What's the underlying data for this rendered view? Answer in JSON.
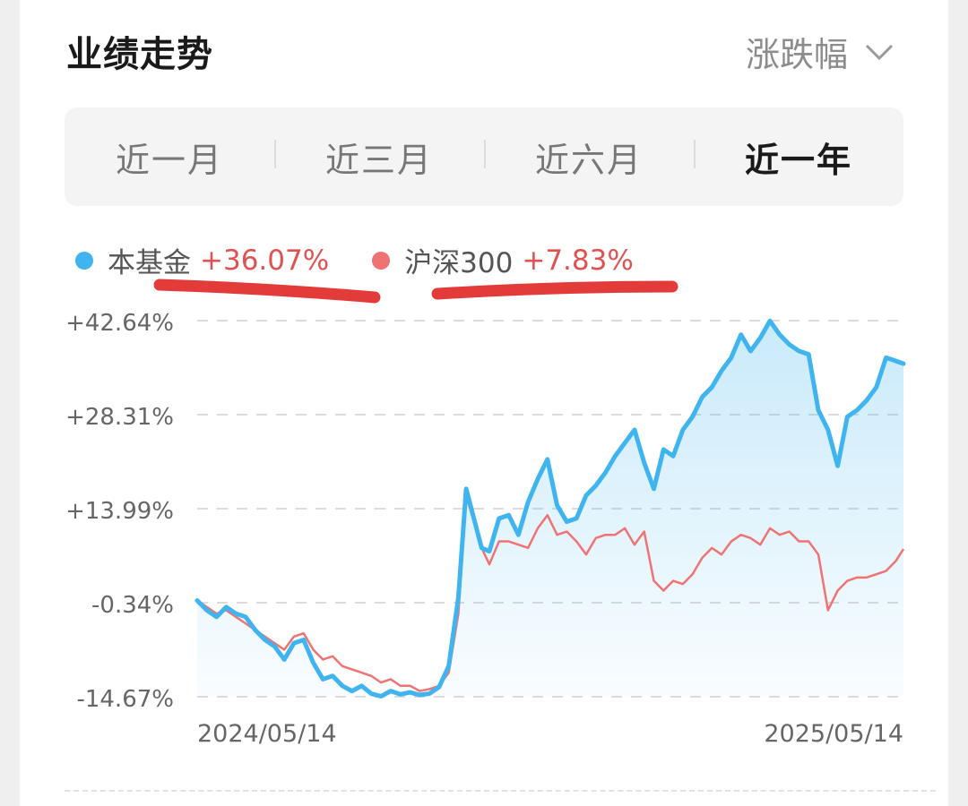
{
  "header": {
    "title": "业绩走势",
    "metric_selector": "涨跌幅"
  },
  "tabs": [
    {
      "label": "近一月",
      "active": false
    },
    {
      "label": "近三月",
      "active": false
    },
    {
      "label": "近六月",
      "active": false
    },
    {
      "label": "近一年",
      "active": true
    }
  ],
  "legend": [
    {
      "name": "本基金",
      "value": "+36.07%",
      "color": "#3fb4ef"
    },
    {
      "name": "沪深300",
      "value": "+7.83%",
      "color": "#ef7373"
    }
  ],
  "annotation_color": "#e33a3a",
  "chart_data": {
    "type": "line",
    "y_ticks": [
      "+42.64%",
      "+28.31%",
      "+13.99%",
      "-0.34%",
      "-14.67%"
    ],
    "y_tick_values": [
      42.64,
      28.31,
      13.99,
      -0.34,
      -14.67
    ],
    "ylim": [
      -14.67,
      42.64
    ],
    "x_tick_labels": [
      "2024/05/14",
      "2025/05/14"
    ],
    "xlim": [
      "2024/05/14",
      "2025/05/14"
    ],
    "grid": "horizontal dashed",
    "series": [
      {
        "name": "本基金",
        "color": "#3fb4ef",
        "area_fill": true,
        "points": [
          [
            "2024/05/14",
            0.0
          ],
          [
            "2024/05/19",
            -1.5
          ],
          [
            "2024/05/24",
            -2.5
          ],
          [
            "2024/05/29",
            -1.0
          ],
          [
            "2024/06/03",
            -2.0
          ],
          [
            "2024/06/08",
            -2.5
          ],
          [
            "2024/06/13",
            -4.5
          ],
          [
            "2024/06/18",
            -6.0
          ],
          [
            "2024/06/23",
            -7.0
          ],
          [
            "2024/06/28",
            -9.0
          ],
          [
            "2024/07/03",
            -6.5
          ],
          [
            "2024/07/08",
            -6.0
          ],
          [
            "2024/07/13",
            -9.5
          ],
          [
            "2024/07/18",
            -12.0
          ],
          [
            "2024/07/23",
            -11.5
          ],
          [
            "2024/07/28",
            -13.0
          ],
          [
            "2024/08/02",
            -13.8
          ],
          [
            "2024/08/07",
            -13.0
          ],
          [
            "2024/08/12",
            -14.2
          ],
          [
            "2024/08/17",
            -14.6
          ],
          [
            "2024/08/22",
            -13.8
          ],
          [
            "2024/08/27",
            -14.3
          ],
          [
            "2024/09/01",
            -14.0
          ],
          [
            "2024/09/06",
            -14.4
          ],
          [
            "2024/09/11",
            -14.2
          ],
          [
            "2024/09/16",
            -13.2
          ],
          [
            "2024/09/21",
            -10.0
          ],
          [
            "2024/09/26",
            0.5
          ],
          [
            "2024/09/30",
            17.0
          ],
          [
            "2024/10/08",
            8.0
          ],
          [
            "2024/10/12",
            7.5
          ],
          [
            "2024/10/17",
            12.5
          ],
          [
            "2024/10/22",
            13.0
          ],
          [
            "2024/10/27",
            10.0
          ],
          [
            "2024/11/01",
            15.0
          ],
          [
            "2024/11/06",
            18.5
          ],
          [
            "2024/11/11",
            21.5
          ],
          [
            "2024/11/16",
            14.5
          ],
          [
            "2024/11/21",
            12.0
          ],
          [
            "2024/11/26",
            12.5
          ],
          [
            "2024/12/01",
            16.0
          ],
          [
            "2024/12/06",
            17.5
          ],
          [
            "2024/12/11",
            19.5
          ],
          [
            "2024/12/16",
            22.0
          ],
          [
            "2024/12/21",
            24.0
          ],
          [
            "2024/12/26",
            26.0
          ],
          [
            "2024/12/31",
            21.0
          ],
          [
            "2025/01/05",
            17.0
          ],
          [
            "2025/01/10",
            23.0
          ],
          [
            "2025/01/15",
            22.0
          ],
          [
            "2025/01/20",
            26.0
          ],
          [
            "2025/01/25",
            28.0
          ],
          [
            "2025/01/30",
            31.0
          ],
          [
            "2025/02/04",
            32.5
          ],
          [
            "2025/02/09",
            35.0
          ],
          [
            "2025/02/14",
            37.0
          ],
          [
            "2025/02/19",
            40.5
          ],
          [
            "2025/02/24",
            38.0
          ],
          [
            "2025/03/01",
            40.0
          ],
          [
            "2025/03/06",
            42.6
          ],
          [
            "2025/03/11",
            40.5
          ],
          [
            "2025/03/16",
            39.0
          ],
          [
            "2025/03/21",
            38.0
          ],
          [
            "2025/03/26",
            37.5
          ],
          [
            "2025/03/31",
            29.0
          ],
          [
            "2025/04/05",
            26.0
          ],
          [
            "2025/04/10",
            20.5
          ],
          [
            "2025/04/15",
            28.0
          ],
          [
            "2025/04/20",
            29.0
          ],
          [
            "2025/04/25",
            30.5
          ],
          [
            "2025/04/30",
            32.5
          ],
          [
            "2025/05/05",
            37.0
          ],
          [
            "2025/05/10",
            36.5
          ],
          [
            "2025/05/14",
            36.07
          ]
        ]
      },
      {
        "name": "沪深300",
        "color": "#ef7373",
        "area_fill": false,
        "points": [
          [
            "2024/05/14",
            0.0
          ],
          [
            "2024/05/19",
            -1.0
          ],
          [
            "2024/05/24",
            -2.0
          ],
          [
            "2024/05/29",
            -1.5
          ],
          [
            "2024/06/03",
            -2.5
          ],
          [
            "2024/06/08",
            -3.5
          ],
          [
            "2024/06/13",
            -4.5
          ],
          [
            "2024/06/18",
            -5.5
          ],
          [
            "2024/06/23",
            -6.5
          ],
          [
            "2024/06/28",
            -7.5
          ],
          [
            "2024/07/03",
            -5.5
          ],
          [
            "2024/07/08",
            -5.0
          ],
          [
            "2024/07/13",
            -7.5
          ],
          [
            "2024/07/18",
            -9.0
          ],
          [
            "2024/07/23",
            -8.5
          ],
          [
            "2024/07/28",
            -10.0
          ],
          [
            "2024/08/02",
            -10.5
          ],
          [
            "2024/08/07",
            -11.0
          ],
          [
            "2024/08/12",
            -11.5
          ],
          [
            "2024/08/17",
            -12.5
          ],
          [
            "2024/08/22",
            -12.0
          ],
          [
            "2024/08/27",
            -13.0
          ],
          [
            "2024/09/01",
            -13.0
          ],
          [
            "2024/09/06",
            -13.8
          ],
          [
            "2024/09/11",
            -13.5
          ],
          [
            "2024/09/16",
            -13.0
          ],
          [
            "2024/09/21",
            -11.0
          ],
          [
            "2024/09/26",
            -2.0
          ],
          [
            "2024/09/30",
            16.0
          ],
          [
            "2024/10/08",
            8.0
          ],
          [
            "2024/10/12",
            5.5
          ],
          [
            "2024/10/17",
            9.0
          ],
          [
            "2024/10/22",
            9.0
          ],
          [
            "2024/10/27",
            8.5
          ],
          [
            "2024/11/01",
            8.0
          ],
          [
            "2024/11/06",
            11.0
          ],
          [
            "2024/11/11",
            13.0
          ],
          [
            "2024/11/16",
            10.0
          ],
          [
            "2024/11/21",
            10.5
          ],
          [
            "2024/11/26",
            9.0
          ],
          [
            "2024/12/01",
            7.0
          ],
          [
            "2024/12/06",
            9.5
          ],
          [
            "2024/12/11",
            10.0
          ],
          [
            "2024/12/16",
            10.0
          ],
          [
            "2024/12/21",
            11.0
          ],
          [
            "2024/12/26",
            8.5
          ],
          [
            "2024/12/31",
            10.5
          ],
          [
            "2025/01/05",
            3.0
          ],
          [
            "2025/01/10",
            1.5
          ],
          [
            "2025/01/15",
            3.0
          ],
          [
            "2025/01/20",
            2.5
          ],
          [
            "2025/01/25",
            4.0
          ],
          [
            "2025/01/30",
            6.5
          ],
          [
            "2025/02/04",
            8.0
          ],
          [
            "2025/02/09",
            7.0
          ],
          [
            "2025/02/14",
            9.0
          ],
          [
            "2025/02/19",
            10.0
          ],
          [
            "2025/02/24",
            9.5
          ],
          [
            "2025/03/01",
            8.5
          ],
          [
            "2025/03/06",
            11.0
          ],
          [
            "2025/03/11",
            10.0
          ],
          [
            "2025/03/16",
            10.5
          ],
          [
            "2025/03/21",
            9.0
          ],
          [
            "2025/03/26",
            9.0
          ],
          [
            "2025/03/31",
            7.0
          ],
          [
            "2025/04/05",
            -1.5
          ],
          [
            "2025/04/10",
            1.5
          ],
          [
            "2025/04/15",
            3.0
          ],
          [
            "2025/04/20",
            3.5
          ],
          [
            "2025/04/25",
            3.5
          ],
          [
            "2025/04/30",
            4.0
          ],
          [
            "2025/05/05",
            4.5
          ],
          [
            "2025/05/10",
            6.0
          ],
          [
            "2025/05/14",
            7.83
          ]
        ]
      }
    ]
  }
}
